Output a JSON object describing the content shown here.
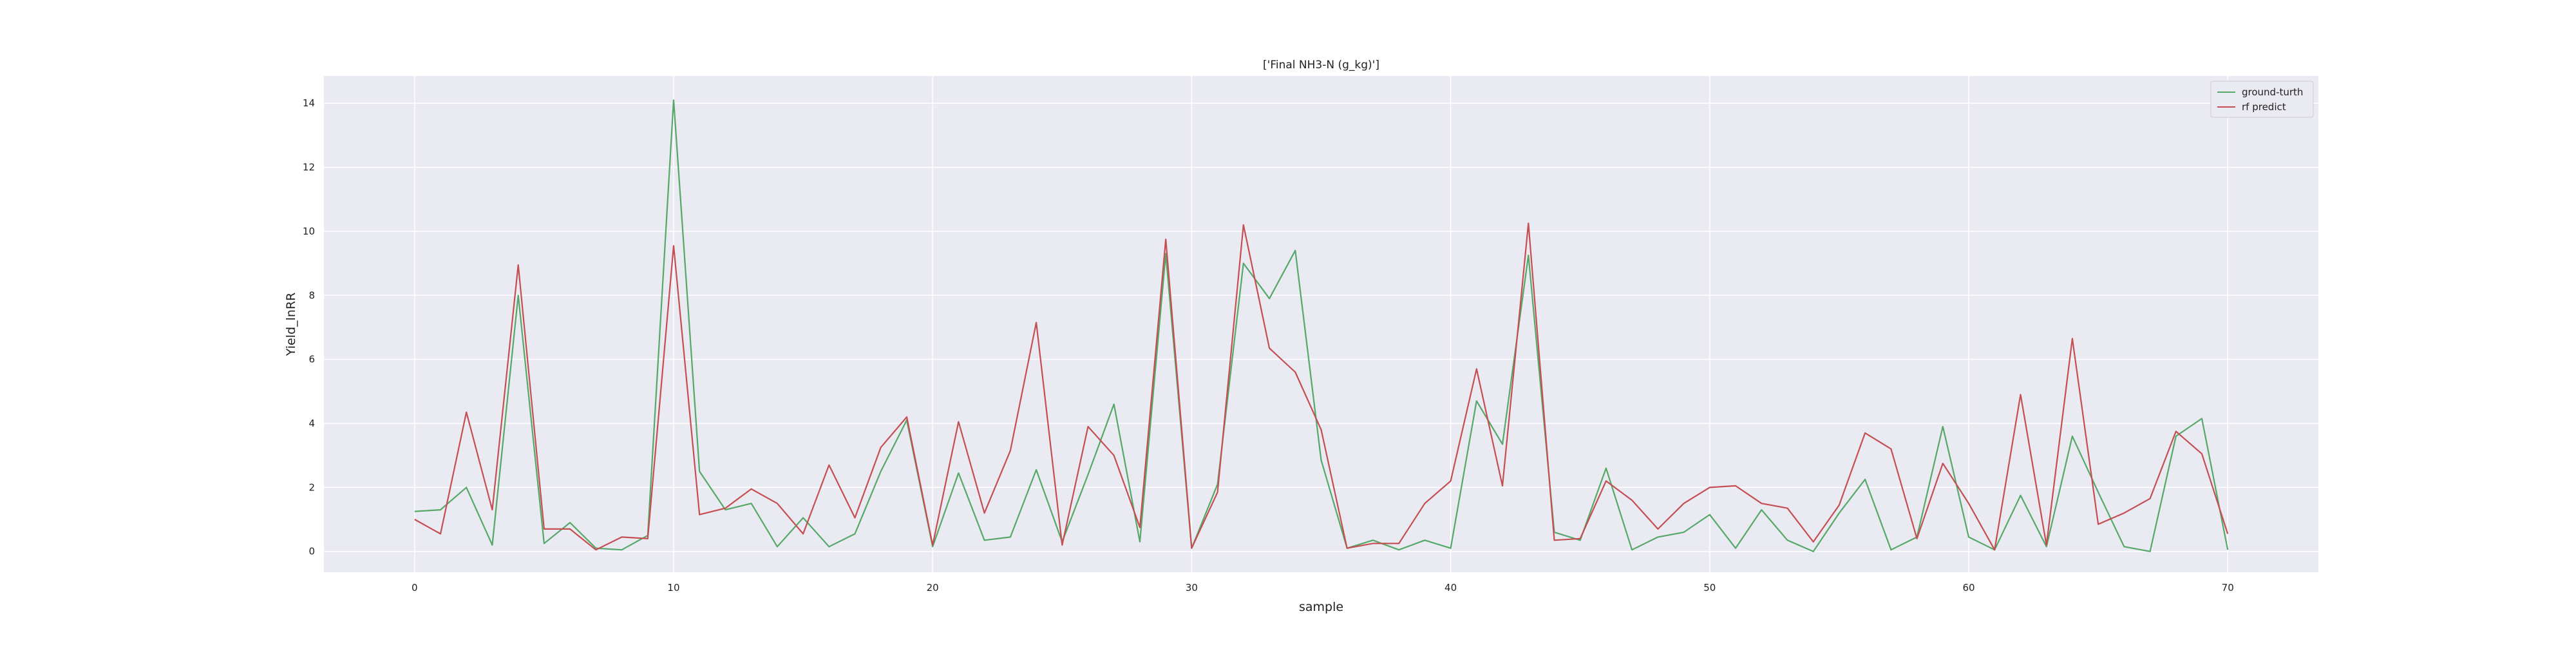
{
  "chart_data": {
    "type": "line",
    "title": "['Final NH3-N (g_kg)']",
    "xlabel": "sample",
    "ylabel": "Yield_lnRR",
    "xlim": [
      -3.5,
      73.5
    ],
    "ylim": [
      -0.65,
      14.85
    ],
    "x_ticks": [
      0,
      10,
      20,
      30,
      40,
      50,
      60,
      70
    ],
    "y_ticks": [
      0,
      2,
      4,
      6,
      8,
      10,
      12,
      14
    ],
    "grid": true,
    "legend_position": "top-right",
    "x": [
      0,
      1,
      2,
      3,
      4,
      5,
      6,
      7,
      8,
      9,
      10,
      11,
      12,
      13,
      14,
      15,
      16,
      17,
      18,
      19,
      20,
      21,
      22,
      23,
      24,
      25,
      26,
      27,
      28,
      29,
      30,
      31,
      32,
      33,
      34,
      35,
      36,
      37,
      38,
      39,
      40,
      41,
      42,
      43,
      44,
      45,
      46,
      47,
      48,
      49,
      50,
      51,
      52,
      53,
      54,
      55,
      56,
      57,
      58,
      59,
      60,
      61,
      62,
      63,
      64,
      65,
      66,
      67,
      68,
      69,
      70
    ],
    "series": [
      {
        "name": "ground-turth",
        "color": "#55a868",
        "values": [
          1.25,
          1.3,
          2.0,
          0.2,
          8.0,
          0.25,
          0.9,
          0.1,
          0.05,
          0.5,
          14.1,
          2.5,
          1.3,
          1.5,
          0.15,
          1.05,
          0.15,
          0.55,
          2.5,
          4.1,
          0.15,
          2.45,
          0.35,
          0.45,
          2.55,
          0.3,
          2.4,
          4.6,
          0.3,
          9.3,
          0.1,
          2.1,
          9.0,
          7.9,
          9.4,
          2.85,
          0.1,
          0.35,
          0.05,
          0.35,
          0.1,
          4.7,
          3.35,
          9.25,
          0.6,
          0.35,
          2.6,
          0.05,
          0.45,
          0.6,
          1.15,
          0.1,
          1.3,
          0.35,
          0.0,
          1.2,
          2.25,
          0.05,
          0.45,
          3.9,
          0.45,
          0.05,
          1.75,
          0.15,
          3.6,
          1.85,
          0.15,
          0.0,
          3.6,
          4.15,
          0.05
        ]
      },
      {
        "name": "rf predict",
        "color": "#c44e52",
        "values": [
          1.0,
          0.55,
          4.35,
          1.3,
          8.95,
          0.7,
          0.7,
          0.05,
          0.45,
          0.4,
          9.55,
          1.15,
          1.35,
          1.95,
          1.5,
          0.55,
          2.7,
          1.05,
          3.25,
          4.2,
          0.2,
          4.05,
          1.2,
          3.15,
          7.15,
          0.2,
          3.9,
          3.0,
          0.75,
          9.75,
          0.1,
          1.85,
          10.2,
          6.35,
          5.6,
          3.8,
          0.1,
          0.25,
          0.25,
          1.5,
          2.2,
          5.7,
          2.05,
          10.25,
          0.35,
          0.4,
          2.2,
          1.6,
          0.7,
          1.5,
          2.0,
          2.05,
          1.5,
          1.35,
          0.3,
          1.45,
          3.7,
          3.2,
          0.4,
          2.75,
          1.5,
          0.05,
          4.9,
          0.2,
          6.65,
          0.85,
          1.2,
          1.65,
          3.75,
          3.05,
          0.55
        ]
      }
    ]
  }
}
